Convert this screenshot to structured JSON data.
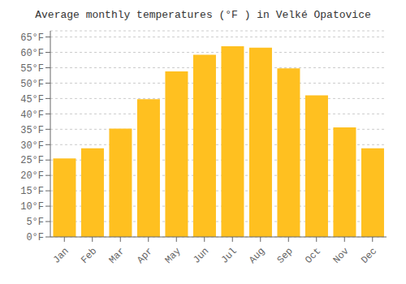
{
  "chart_data": {
    "type": "bar",
    "title": "Average monthly temperatures (°F ) in Velké Opatovice",
    "categories": [
      "Jan",
      "Feb",
      "Mar",
      "Apr",
      "May",
      "Jun",
      "Jul",
      "Aug",
      "Sep",
      "Oct",
      "Nov",
      "Dec"
    ],
    "values": [
      25.5,
      28.8,
      35.2,
      44.8,
      53.8,
      59.2,
      62.0,
      61.5,
      54.8,
      46.0,
      35.6,
      28.8
    ],
    "color": "#FFC020",
    "ylim": [
      0,
      67
    ],
    "yticks": [
      {
        "value": 0,
        "label": "0°F"
      },
      {
        "value": 5,
        "label": "5°F"
      },
      {
        "value": 10,
        "label": "10°F"
      },
      {
        "value": 15,
        "label": "15°F"
      },
      {
        "value": 20,
        "label": "20°F"
      },
      {
        "value": 25,
        "label": "25°F"
      },
      {
        "value": 30,
        "label": "30°F"
      },
      {
        "value": 35,
        "label": "35°F"
      },
      {
        "value": 40,
        "label": "40°F"
      },
      {
        "value": 45,
        "label": "45°F"
      },
      {
        "value": 50,
        "label": "50°F"
      },
      {
        "value": 55,
        "label": "55°F"
      },
      {
        "value": 60,
        "label": "60°F"
      },
      {
        "value": 65,
        "label": "65°F"
      }
    ],
    "grid": true
  }
}
